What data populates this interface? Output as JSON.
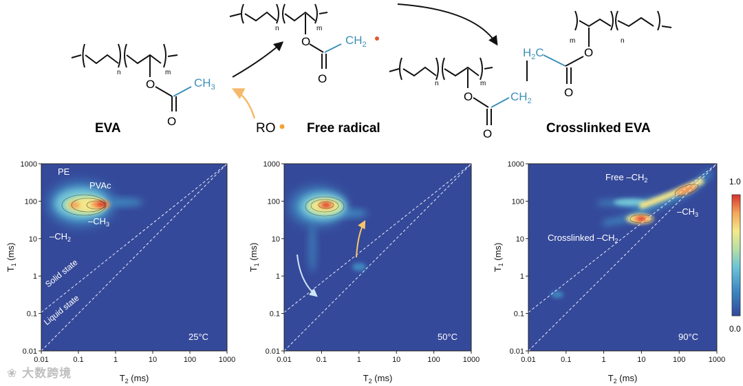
{
  "scheme": {
    "eva_label": "EVA",
    "free_radical_label": "Free radical",
    "crosslinked_label": "Crosslinked EVA",
    "initiator": "RO",
    "n": "n",
    "m": "m",
    "ch3": "CH",
    "ch3_sub": "3",
    "ch2": "CH",
    "ch2_sub": "2",
    "h2c": "H",
    "h2c_sub": "2",
    "h2c_c": "C",
    "o": "O",
    "colors": {
      "blue": "#3d8fb8",
      "radical_dot": "#e4572e",
      "ro_arrow": "#f6b96b",
      "ro_dot": "#f2a33a"
    }
  },
  "panels": [
    {
      "temperature": "25",
      "temp_unit": "°C",
      "annotations": [
        "PE",
        "PVAc",
        "–CH",
        "–CH",
        "Solid state",
        "Liquid state"
      ],
      "annotation_subs": [
        "",
        "",
        "3",
        "2",
        "",
        ""
      ]
    },
    {
      "temperature": "50",
      "temp_unit": "°C",
      "annotations": [],
      "annotation_subs": []
    },
    {
      "temperature": "90",
      "temp_unit": "°C",
      "annotations": [
        "Free –CH",
        "–CH",
        "Crosslinked –CH"
      ],
      "annotation_subs": [
        "2",
        "3",
        "2"
      ]
    }
  ],
  "axes": {
    "x_label": "T",
    "x_sub": "2",
    "x_unit": " (ms)",
    "y_label": "T",
    "y_sub": "1",
    "y_unit": " (ms)",
    "x_ticks": [
      "0.01",
      "0.1",
      "1",
      "10",
      "100",
      "1000"
    ],
    "y_ticks": [
      "1000",
      "100",
      "10",
      "1",
      "0.1",
      "0.01"
    ]
  },
  "colorbar": {
    "max": "1.0",
    "min": "0.0"
  },
  "watermark": "大数跨境",
  "chart_data": [
    {
      "type": "heatmap",
      "title": "",
      "xlabel": "T2 (ms)",
      "ylabel": "T1 (ms)",
      "xscale": "log",
      "yscale": "log",
      "xlim": [
        0.01,
        1000
      ],
      "ylim": [
        0.01,
        1000
      ],
      "annotations": [
        "PE",
        "PVAc",
        "–CH3",
        "–CH2",
        "Solid state",
        "Liquid state",
        "25°C"
      ],
      "peaks": [
        {
          "T2": 0.4,
          "T1": 80,
          "intensity": 1.0
        },
        {
          "T2": 0.1,
          "T1": 70,
          "intensity": 0.8
        }
      ]
    },
    {
      "type": "heatmap",
      "title": "",
      "xlabel": "T2 (ms)",
      "ylabel": "T1 (ms)",
      "xscale": "log",
      "yscale": "log",
      "xlim": [
        0.01,
        1000
      ],
      "ylim": [
        0.01,
        1000
      ],
      "annotations": [
        "50°C"
      ],
      "peaks": [
        {
          "T2": 0.1,
          "T1": 70,
          "intensity": 1.0
        },
        {
          "T2": 0.8,
          "T1": 2,
          "intensity": 0.2
        }
      ]
    },
    {
      "type": "heatmap",
      "title": "",
      "xlabel": "T2 (ms)",
      "ylabel": "T1 (ms)",
      "xscale": "log",
      "yscale": "log",
      "xlim": [
        0.01,
        1000
      ],
      "ylim": [
        0.01,
        1000
      ],
      "annotations": [
        "Free –CH2",
        "–CH3",
        "Crosslinked –CH2",
        "90°C"
      ],
      "peaks": [
        {
          "T2": 200,
          "T1": 150,
          "intensity": 0.9
        },
        {
          "T2": 10,
          "T1": 30,
          "intensity": 1.0
        },
        {
          "T2": 0.06,
          "T1": 0.35,
          "intensity": 0.1
        }
      ]
    }
  ]
}
